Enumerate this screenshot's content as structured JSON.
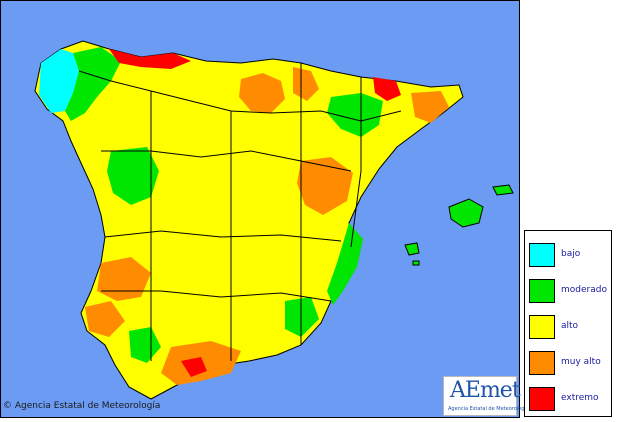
{
  "map": {
    "copyright": "© Agencia Estatal de Meteorología",
    "logo": {
      "word": "AEmet",
      "subtitle": "Agencia Estatal de Meteorología"
    },
    "colors": {
      "sea": "#6b9bf2",
      "bajo": "#00ffff",
      "moderado": "#00e600",
      "alto": "#ffff00",
      "muy_alto": "#ff8c00",
      "extremo": "#ff0000"
    }
  },
  "legend": {
    "items": [
      {
        "label": "bajo",
        "color": "#00ffff"
      },
      {
        "label": "moderado",
        "color": "#00e600"
      },
      {
        "label": "alto",
        "color": "#ffff00"
      },
      {
        "label": "muy alto",
        "color": "#ff8c00"
      },
      {
        "label": "extremo",
        "color": "#ff0000"
      }
    ]
  }
}
